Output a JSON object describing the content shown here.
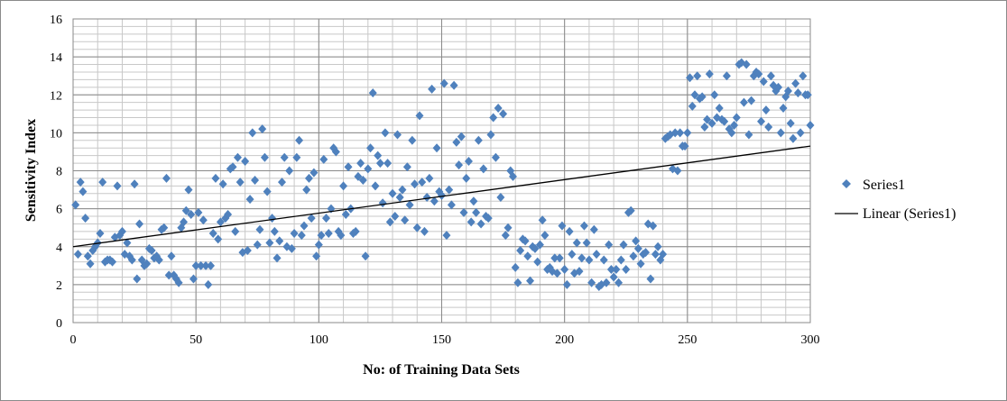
{
  "chart_data": {
    "type": "scatter",
    "title": "",
    "xlabel": "No: of Training  Data Sets",
    "ylabel": "Sensitivity Index",
    "xlim": [
      0,
      300
    ],
    "ylim": [
      0,
      16
    ],
    "xticks": [
      "0",
      "50",
      "100",
      "150",
      "200",
      "250",
      "300"
    ],
    "yticks": [
      "0",
      "2",
      "4",
      "6",
      "8",
      "10",
      "12",
      "14",
      "16"
    ],
    "grid": true,
    "legend_position": "right",
    "series": [
      {
        "name": "Series1",
        "color": "#4f81bd",
        "marker": "diamond",
        "points": [
          [
            1,
            6.2
          ],
          [
            2,
            3.6
          ],
          [
            3,
            7.4
          ],
          [
            4,
            6.9
          ],
          [
            5,
            5.5
          ],
          [
            6,
            3.5
          ],
          [
            7,
            3.1
          ],
          [
            8,
            3.8
          ],
          [
            9,
            4.0
          ],
          [
            10,
            4.2
          ],
          [
            11,
            4.7
          ],
          [
            12,
            7.4
          ],
          [
            13,
            3.2
          ],
          [
            14,
            3.3
          ],
          [
            15,
            3.3
          ],
          [
            16,
            3.2
          ],
          [
            17,
            4.5
          ],
          [
            18,
            7.2
          ],
          [
            19,
            4.6
          ],
          [
            20,
            4.8
          ],
          [
            21,
            3.6
          ],
          [
            22,
            4.2
          ],
          [
            23,
            3.5
          ],
          [
            24,
            3.3
          ],
          [
            25,
            7.3
          ],
          [
            26,
            2.3
          ],
          [
            27,
            5.2
          ],
          [
            28,
            3.3
          ],
          [
            29,
            3.0
          ],
          [
            30,
            3.1
          ],
          [
            31,
            3.9
          ],
          [
            32,
            3.8
          ],
          [
            33,
            3.4
          ],
          [
            34,
            3.5
          ],
          [
            35,
            3.3
          ],
          [
            36,
            4.9
          ],
          [
            37,
            5.0
          ],
          [
            38,
            7.6
          ],
          [
            39,
            2.5
          ],
          [
            40,
            3.5
          ],
          [
            41,
            2.5
          ],
          [
            42,
            2.3
          ],
          [
            43,
            2.1
          ],
          [
            44,
            5.0
          ],
          [
            45,
            5.3
          ],
          [
            46,
            5.9
          ],
          [
            47,
            7.0
          ],
          [
            48,
            5.7
          ],
          [
            49,
            2.3
          ],
          [
            50,
            3.0
          ],
          [
            51,
            5.8
          ],
          [
            52,
            3.0
          ],
          [
            53,
            5.4
          ],
          [
            54,
            3.0
          ],
          [
            55,
            2.0
          ],
          [
            56,
            3.0
          ],
          [
            57,
            4.7
          ],
          [
            58,
            7.6
          ],
          [
            59,
            4.4
          ],
          [
            60,
            5.3
          ],
          [
            61,
            7.3
          ],
          [
            62,
            5.5
          ],
          [
            63,
            5.7
          ],
          [
            64,
            8.1
          ],
          [
            65,
            8.2
          ],
          [
            66,
            4.8
          ],
          [
            67,
            8.7
          ],
          [
            68,
            7.4
          ],
          [
            69,
            3.7
          ],
          [
            70,
            8.5
          ],
          [
            71,
            3.8
          ],
          [
            72,
            6.5
          ],
          [
            73,
            10.0
          ],
          [
            74,
            7.5
          ],
          [
            75,
            4.1
          ],
          [
            76,
            4.9
          ],
          [
            77,
            10.2
          ],
          [
            78,
            8.7
          ],
          [
            79,
            6.9
          ],
          [
            80,
            4.2
          ],
          [
            81,
            5.5
          ],
          [
            82,
            4.8
          ],
          [
            83,
            3.4
          ],
          [
            84,
            4.3
          ],
          [
            85,
            7.4
          ],
          [
            86,
            8.7
          ],
          [
            87,
            4.0
          ],
          [
            88,
            8.0
          ],
          [
            89,
            3.9
          ],
          [
            90,
            4.7
          ],
          [
            91,
            8.7
          ],
          [
            92,
            9.6
          ],
          [
            93,
            4.6
          ],
          [
            94,
            5.1
          ],
          [
            95,
            7.0
          ],
          [
            96,
            7.6
          ],
          [
            97,
            5.5
          ],
          [
            98,
            7.9
          ],
          [
            99,
            3.5
          ],
          [
            100,
            4.1
          ],
          [
            101,
            4.6
          ],
          [
            102,
            8.6
          ],
          [
            103,
            5.5
          ],
          [
            104,
            4.7
          ],
          [
            105,
            6.0
          ],
          [
            106,
            9.2
          ],
          [
            107,
            9.0
          ],
          [
            108,
            4.8
          ],
          [
            109,
            4.6
          ],
          [
            110,
            7.2
          ],
          [
            111,
            5.7
          ],
          [
            112,
            8.2
          ],
          [
            113,
            6.0
          ],
          [
            114,
            4.7
          ],
          [
            115,
            4.8
          ],
          [
            116,
            7.7
          ],
          [
            117,
            8.4
          ],
          [
            118,
            7.5
          ],
          [
            119,
            3.5
          ],
          [
            120,
            8.1
          ],
          [
            121,
            9.2
          ],
          [
            122,
            12.1
          ],
          [
            123,
            7.2
          ],
          [
            124,
            8.8
          ],
          [
            125,
            8.4
          ],
          [
            126,
            6.3
          ],
          [
            127,
            10.0
          ],
          [
            128,
            8.4
          ],
          [
            129,
            5.3
          ],
          [
            130,
            6.8
          ],
          [
            131,
            5.6
          ],
          [
            132,
            9.9
          ],
          [
            133,
            6.6
          ],
          [
            134,
            7.0
          ],
          [
            135,
            5.4
          ],
          [
            136,
            8.2
          ],
          [
            137,
            6.2
          ],
          [
            138,
            9.6
          ],
          [
            139,
            7.3
          ],
          [
            140,
            5.0
          ],
          [
            141,
            10.9
          ],
          [
            142,
            7.4
          ],
          [
            143,
            4.8
          ],
          [
            144,
            6.6
          ],
          [
            145,
            7.6
          ],
          [
            146,
            12.3
          ],
          [
            147,
            6.4
          ],
          [
            148,
            9.2
          ],
          [
            149,
            6.9
          ],
          [
            150,
            6.7
          ],
          [
            151,
            12.6
          ],
          [
            152,
            4.6
          ],
          [
            153,
            7.0
          ],
          [
            154,
            6.2
          ],
          [
            155,
            12.5
          ],
          [
            156,
            9.5
          ],
          [
            157,
            8.3
          ],
          [
            158,
            9.8
          ],
          [
            159,
            5.8
          ],
          [
            160,
            7.6
          ],
          [
            161,
            8.5
          ],
          [
            162,
            5.3
          ],
          [
            163,
            6.4
          ],
          [
            164,
            5.8
          ],
          [
            165,
            9.6
          ],
          [
            166,
            5.2
          ],
          [
            167,
            8.1
          ],
          [
            168,
            5.6
          ],
          [
            169,
            5.5
          ],
          [
            170,
            9.9
          ],
          [
            171,
            10.8
          ],
          [
            172,
            8.7
          ],
          [
            173,
            11.3
          ],
          [
            174,
            6.6
          ],
          [
            175,
            11.0
          ],
          [
            176,
            4.6
          ],
          [
            177,
            5.0
          ],
          [
            178,
            8.0
          ],
          [
            179,
            7.7
          ],
          [
            180,
            2.9
          ],
          [
            181,
            2.1
          ],
          [
            182,
            3.8
          ],
          [
            183,
            4.4
          ],
          [
            184,
            4.3
          ],
          [
            185,
            3.5
          ],
          [
            186,
            2.2
          ],
          [
            187,
            4.0
          ],
          [
            188,
            3.9
          ],
          [
            189,
            3.2
          ],
          [
            190,
            4.1
          ],
          [
            191,
            5.4
          ],
          [
            192,
            4.6
          ],
          [
            193,
            2.8
          ],
          [
            194,
            2.9
          ],
          [
            195,
            2.7
          ],
          [
            196,
            3.4
          ],
          [
            197,
            2.6
          ],
          [
            198,
            3.4
          ],
          [
            199,
            5.1
          ],
          [
            200,
            2.8
          ],
          [
            201,
            2.0
          ],
          [
            202,
            4.8
          ],
          [
            203,
            3.6
          ],
          [
            204,
            2.6
          ],
          [
            205,
            4.2
          ],
          [
            206,
            2.7
          ],
          [
            207,
            3.4
          ],
          [
            208,
            5.1
          ],
          [
            209,
            4.2
          ],
          [
            210,
            3.3
          ],
          [
            211,
            2.1
          ],
          [
            212,
            4.9
          ],
          [
            213,
            3.6
          ],
          [
            214,
            1.9
          ],
          [
            215,
            2.0
          ],
          [
            216,
            3.3
          ],
          [
            217,
            2.1
          ],
          [
            218,
            4.1
          ],
          [
            219,
            2.8
          ],
          [
            220,
            2.4
          ],
          [
            221,
            2.8
          ],
          [
            222,
            2.1
          ],
          [
            223,
            3.3
          ],
          [
            224,
            4.1
          ],
          [
            225,
            2.8
          ],
          [
            226,
            5.8
          ],
          [
            227,
            5.9
          ],
          [
            228,
            3.5
          ],
          [
            229,
            4.3
          ],
          [
            230,
            3.9
          ],
          [
            231,
            3.1
          ],
          [
            232,
            3.6
          ],
          [
            233,
            3.7
          ],
          [
            234,
            5.2
          ],
          [
            235,
            2.3
          ],
          [
            236,
            5.1
          ],
          [
            237,
            3.6
          ],
          [
            238,
            4.0
          ],
          [
            239,
            3.3
          ],
          [
            240,
            3.6
          ],
          [
            241,
            9.7
          ],
          [
            242,
            9.8
          ],
          [
            243,
            9.9
          ],
          [
            244,
            8.1
          ],
          [
            245,
            10.0
          ],
          [
            246,
            8.0
          ],
          [
            247,
            10.0
          ],
          [
            248,
            9.3
          ],
          [
            249,
            9.3
          ],
          [
            250,
            10.0
          ],
          [
            251,
            12.9
          ],
          [
            252,
            11.4
          ],
          [
            253,
            12.0
          ],
          [
            254,
            13.0
          ],
          [
            255,
            11.8
          ],
          [
            256,
            11.9
          ],
          [
            257,
            10.3
          ],
          [
            258,
            10.7
          ],
          [
            259,
            13.1
          ],
          [
            260,
            10.5
          ],
          [
            261,
            12.0
          ],
          [
            262,
            10.8
          ],
          [
            263,
            11.3
          ],
          [
            264,
            10.7
          ],
          [
            265,
            10.6
          ],
          [
            266,
            13.0
          ],
          [
            267,
            10.2
          ],
          [
            268,
            10.0
          ],
          [
            269,
            10.4
          ],
          [
            270,
            10.8
          ],
          [
            271,
            13.6
          ],
          [
            272,
            13.7
          ],
          [
            273,
            11.6
          ],
          [
            274,
            13.6
          ],
          [
            275,
            9.9
          ],
          [
            276,
            11.7
          ],
          [
            277,
            13.0
          ],
          [
            278,
            13.2
          ],
          [
            279,
            13.1
          ],
          [
            280,
            10.6
          ],
          [
            281,
            12.7
          ],
          [
            282,
            11.2
          ],
          [
            283,
            10.3
          ],
          [
            284,
            13.0
          ],
          [
            285,
            12.5
          ],
          [
            286,
            12.2
          ],
          [
            287,
            12.4
          ],
          [
            288,
            10.0
          ],
          [
            289,
            11.3
          ],
          [
            290,
            11.9
          ],
          [
            291,
            12.2
          ],
          [
            292,
            10.5
          ],
          [
            293,
            9.7
          ],
          [
            294,
            12.6
          ],
          [
            295,
            12.1
          ],
          [
            296,
            10.0
          ],
          [
            297,
            13.0
          ],
          [
            298,
            12.0
          ],
          [
            299,
            12.0
          ],
          [
            300,
            10.4
          ]
        ]
      },
      {
        "name": "Linear (Series1)",
        "color": "#000000",
        "type": "line",
        "points": [
          [
            0,
            4.0
          ],
          [
            300,
            9.3
          ]
        ]
      }
    ]
  }
}
